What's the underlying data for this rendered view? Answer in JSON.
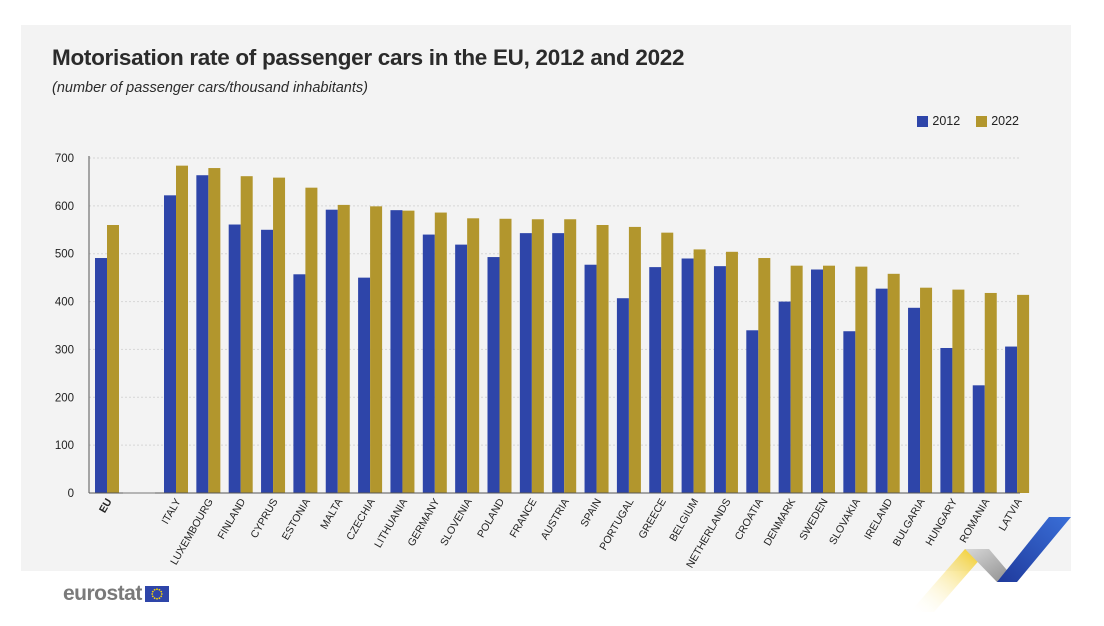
{
  "title": "Motorisation rate of passenger cars in the EU, 2012 and 2022",
  "subtitle": "(number of passenger cars/thousand inhabitants)",
  "logo_text": "eurostat",
  "logo_flag_icon": "eu-flag-icon",
  "colors": {
    "s2012": "#2e45a9",
    "s2022": "#b2962d",
    "panel": "#f3f3f3"
  },
  "chart_data": {
    "type": "bar",
    "title": "Motorisation rate of passenger cars in the EU, 2012 and 2022",
    "subtitle": "(number of passenger cars/thousand inhabitants)",
    "categories": [
      "EU",
      "ITALY",
      "LUXEMBOURG",
      "FINLAND",
      "CYPRUS",
      "ESTONIA",
      "MALTA",
      "CZECHIA",
      "LITHUANIA",
      "GERMANY",
      "SLOVENIA",
      "POLAND",
      "FRANCE",
      "AUSTRIA",
      "SPAIN",
      "PORTUGAL",
      "GREECE",
      "BELGIUM",
      "NETHERLANDS",
      "CROATIA",
      "DENMARK",
      "SWEDEN",
      "SLOVAKIA",
      "IRELAND",
      "BULGARIA",
      "HUNGARY",
      "ROMANIA",
      "LATVIA"
    ],
    "series": [
      {
        "name": "2012",
        "values": [
          491,
          622,
          664,
          561,
          550,
          457,
          592,
          450,
          591,
          540,
          519,
          493,
          543,
          543,
          477,
          407,
          472,
          490,
          474,
          340,
          400,
          467,
          338,
          427,
          387,
          303,
          225,
          306
        ]
      },
      {
        "name": "2022",
        "values": [
          560,
          684,
          679,
          662,
          659,
          638,
          602,
          599,
          590,
          586,
          574,
          573,
          572,
          572,
          560,
          556,
          544,
          509,
          504,
          491,
          475,
          475,
          473,
          458,
          429,
          425,
          418,
          414
        ]
      }
    ],
    "ylim": [
      0,
      700
    ],
    "yticks": [
      0,
      100,
      200,
      300,
      400,
      500,
      600,
      700
    ],
    "grid": true,
    "legend": "top-right",
    "xlabel": "",
    "ylabel": ""
  }
}
